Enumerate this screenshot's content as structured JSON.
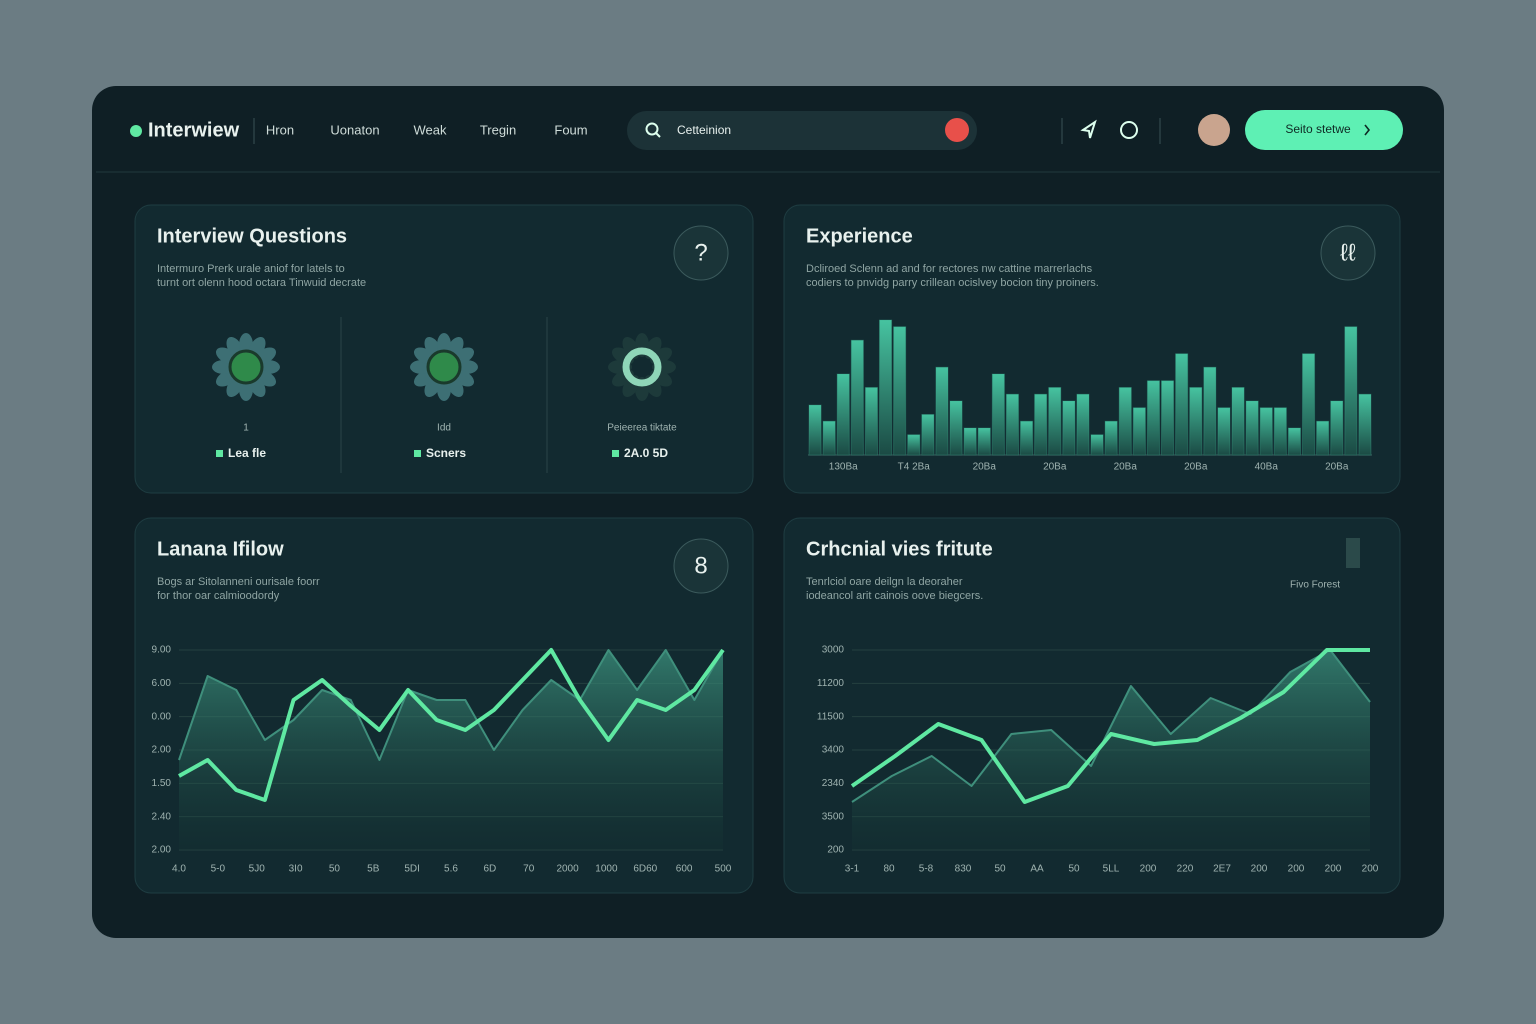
{
  "header": {
    "logo": "Interwiew",
    "nav": [
      "Hron",
      "Uonaton",
      "Weak",
      "Tregin",
      "Foum"
    ],
    "search": "Cetteinion",
    "button": "Seito stetwe"
  },
  "panels": [
    {
      "title": "Interview Questions",
      "badge": "?",
      "description": [
        "Intermuro Prerk urale aniof for latels to",
        "turnt ort olenn hood octara Tinwuid decrate"
      ],
      "items": [
        {
          "caption": "1",
          "label": "Lea fle"
        },
        {
          "caption": "Idd",
          "label": "Scners"
        },
        {
          "caption": "Peieerea tiktate",
          "label": "2A.0 5D"
        }
      ]
    },
    {
      "title": "Experience",
      "badge": "ℓℓ",
      "description": [
        "Dcliroed Sclenn ad and for rectores nw cattine marrerlachs",
        "codiers to pnvidg parry crillean ocislvey bocion tiny proiners."
      ],
      "chart_data": {
        "type": "bar",
        "color": "#3aa88c",
        "ylim": [
          0,
          100
        ],
        "xlabels": [
          "130Ba",
          "T4 2Ba",
          "20Ba",
          "20Ba",
          "20Ba",
          "20Ba",
          "40Ba",
          "20Ba"
        ],
        "values": [
          37,
          25,
          60,
          85,
          50,
          100,
          95,
          15,
          30,
          65,
          40,
          20,
          20,
          60,
          45,
          25,
          45,
          50,
          40,
          45,
          15,
          25,
          50,
          35,
          55,
          55,
          75,
          50,
          65,
          35,
          50,
          40,
          35,
          35,
          20,
          75,
          25,
          40,
          95,
          45
        ]
      }
    },
    {
      "title": "Lanana Ifilow",
      "badge": "8",
      "description": [
        "Bogs ar Sitolanneni ourisale foorr",
        "for thor oar calmioodordy"
      ],
      "chart_data": {
        "type": "line",
        "ylim": [
          0,
          100
        ],
        "ylabels": [
          "9.00",
          "6.00",
          "0.00",
          "2.00",
          "1.50",
          "2.40",
          "2.00"
        ],
        "xlabels": [
          "4.0",
          "5-0",
          "5J0",
          "3I0",
          "50",
          "5B",
          "5DI",
          "5.6",
          "6D",
          "70",
          "2000",
          "1000",
          "6D60",
          "600",
          "500"
        ],
        "series": [
          {
            "color": "#5fe8a2",
            "values": [
              37,
              45,
              30,
              25,
              75,
              85,
              72,
              60,
              80,
              65,
              60,
              70,
              85,
              100,
              75,
              55,
              75,
              70,
              80,
              100
            ]
          },
          {
            "color": "#3f8f7c",
            "values": [
              45,
              87,
              80,
              55,
              65,
              80,
              75,
              45,
              80,
              75,
              75,
              50,
              70,
              85,
              75,
              100,
              80,
              100,
              75,
              100
            ]
          }
        ]
      }
    },
    {
      "title": "Crhcnial vies fritute",
      "legend": "Fivo Forest",
      "description": [
        "Tenrlciol oare deilgn la deoraher",
        "iodeancol arit cainois oove biegcers."
      ],
      "chart_data": {
        "type": "line",
        "ylim": [
          0,
          100
        ],
        "ylabels": [
          "3000",
          "11200",
          "11500",
          "3400",
          "2340",
          "3500",
          "200"
        ],
        "xlabels": [
          "3-1",
          "80",
          "5-8",
          "830",
          "50",
          "AA",
          "50",
          "5LL",
          "200",
          "220",
          "2E7",
          "200",
          "200",
          "200",
          "200"
        ],
        "series": [
          {
            "color": "#5fe8a2",
            "values": [
              32,
              47,
              63,
              55,
              24,
              32,
              58,
              53,
              55,
              66,
              79,
              100,
              100
            ]
          },
          {
            "color": "#3f8f7c",
            "values": [
              24,
              37,
              47,
              32,
              58,
              60,
              42,
              82,
              58,
              76,
              68,
              89,
              100,
              74
            ]
          }
        ]
      }
    }
  ]
}
